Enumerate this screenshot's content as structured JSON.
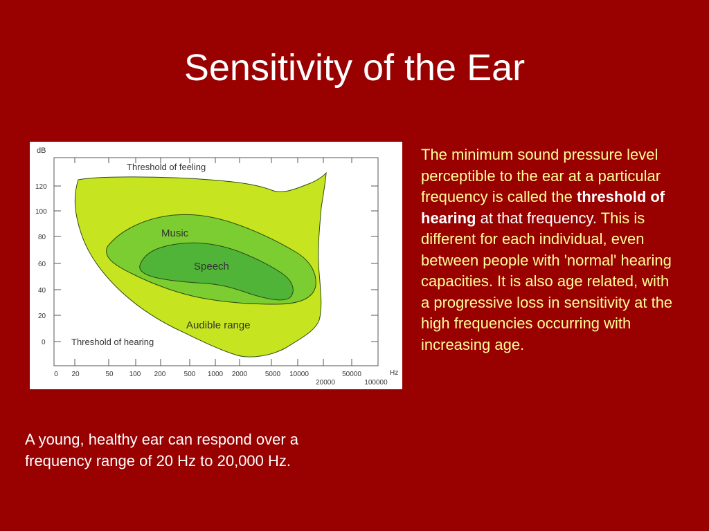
{
  "slide": {
    "title": "Sensitivity of the Ear"
  },
  "figure": {
    "y_unit": "dB",
    "x_unit": "Hz",
    "y_ticks": [
      "120",
      "100",
      "80",
      "60",
      "40",
      "20",
      "0"
    ],
    "x_ticks_upper": [
      "0",
      "20",
      "50",
      "100",
      "200",
      "500",
      "1000",
      "2000",
      "5000",
      "10000",
      "50000"
    ],
    "x_ticks_lower": [
      "20000",
      "100000"
    ],
    "regions": {
      "threshold_of_feeling": "Threshold of feeling",
      "music": "Music",
      "speech": "Speech",
      "audible_range": "Audible range",
      "threshold_of_hearing": "Threshold of hearing"
    },
    "colors": {
      "audible": "#c6e41f",
      "music": "#7ccd32",
      "speech": "#4fb438",
      "outline": "#2a4a10"
    }
  },
  "side_text": {
    "part1": "The minimum sound pressure level perceptible to the ear at a particular frequency is called the ",
    "bold": "threshold of hearing",
    "part2": " at that frequency.",
    "part3": " This is different for each individual, even between people with 'normal' hearing capacities. It is also age related, with a progressive loss in sensitivity at the high frequencies occurring with increasing age."
  },
  "caption": "A young, healthy ear can respond over a frequency range of 20 Hz to 20,000 Hz."
}
